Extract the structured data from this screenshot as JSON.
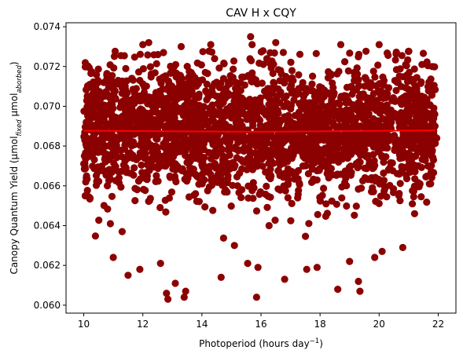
{
  "chart_data": {
    "type": "scatter",
    "title": "CAV H x CQY",
    "xlabel": {
      "main": "Photoperiod (hours day",
      "sup": "−1",
      "close": ")"
    },
    "ylabel": {
      "prefix": "Canopy Quantum Yield (μmol",
      "sub1": "fixed",
      "mid": " μmol",
      "sub2": "aborbed",
      "close": ")"
    },
    "xlim": [
      9.4,
      22.6
    ],
    "ylim": [
      0.0596,
      0.0742
    ],
    "xticks": [
      10,
      12,
      14,
      16,
      18,
      20,
      22
    ],
    "yticks": [
      0.06,
      0.062,
      0.064,
      0.066,
      0.068,
      0.07,
      0.072,
      0.074
    ],
    "xtick_labels": [
      "10",
      "12",
      "14",
      "16",
      "18",
      "20",
      "22"
    ],
    "ytick_labels": [
      "0.060",
      "0.062",
      "0.064",
      "0.066",
      "0.068",
      "0.070",
      "0.072",
      "0.074"
    ],
    "points_color": "#8b0000",
    "trend_color": "#ff0000",
    "data_summary": {
      "x_range": [
        10.0,
        21.9
      ],
      "y_center": 0.0688,
      "y_spread_sd": 0.0016
    },
    "outliers": [
      {
        "x": 10.05,
        "y": 0.0655
      },
      {
        "x": 10.2,
        "y": 0.0711
      },
      {
        "x": 10.8,
        "y": 0.066
      },
      {
        "x": 10.9,
        "y": 0.0641
      },
      {
        "x": 11.3,
        "y": 0.0637
      },
      {
        "x": 11.0,
        "y": 0.0624
      },
      {
        "x": 11.5,
        "y": 0.0615
      },
      {
        "x": 11.9,
        "y": 0.0618
      },
      {
        "x": 11.9,
        "y": 0.0713
      },
      {
        "x": 12.0,
        "y": 0.0731
      },
      {
        "x": 12.2,
        "y": 0.0732
      },
      {
        "x": 12.6,
        "y": 0.0621
      },
      {
        "x": 12.8,
        "y": 0.0606
      },
      {
        "x": 12.85,
        "y": 0.0603
      },
      {
        "x": 13.1,
        "y": 0.0611
      },
      {
        "x": 13.4,
        "y": 0.0604
      },
      {
        "x": 13.45,
        "y": 0.0607
      },
      {
        "x": 13.3,
        "y": 0.073
      },
      {
        "x": 14.3,
        "y": 0.0731
      },
      {
        "x": 14.65,
        "y": 0.0614
      },
      {
        "x": 15.1,
        "y": 0.063
      },
      {
        "x": 15.55,
        "y": 0.0621
      },
      {
        "x": 15.65,
        "y": 0.0735
      },
      {
        "x": 15.7,
        "y": 0.0731
      },
      {
        "x": 15.85,
        "y": 0.0604
      },
      {
        "x": 15.9,
        "y": 0.0619
      },
      {
        "x": 16.8,
        "y": 0.0613
      },
      {
        "x": 16.5,
        "y": 0.0732
      },
      {
        "x": 17.55,
        "y": 0.0618
      },
      {
        "x": 17.9,
        "y": 0.0619
      },
      {
        "x": 18.6,
        "y": 0.0608
      },
      {
        "x": 18.7,
        "y": 0.0731
      },
      {
        "x": 19.0,
        "y": 0.0622
      },
      {
        "x": 19.3,
        "y": 0.0612
      },
      {
        "x": 19.35,
        "y": 0.0607
      },
      {
        "x": 19.85,
        "y": 0.0624
      },
      {
        "x": 20.1,
        "y": 0.0627
      },
      {
        "x": 20.0,
        "y": 0.0731
      },
      {
        "x": 20.8,
        "y": 0.0629
      },
      {
        "x": 21.2,
        "y": 0.0646
      },
      {
        "x": 21.45,
        "y": 0.0721
      },
      {
        "x": 21.8,
        "y": 0.072
      },
      {
        "x": 21.95,
        "y": 0.0684
      },
      {
        "x": 21.7,
        "y": 0.0661
      }
    ],
    "trend_line": {
      "x": [
        10.0,
        16.0,
        21.9
      ],
      "y": [
        0.06877,
        0.06872,
        0.06879
      ]
    }
  }
}
